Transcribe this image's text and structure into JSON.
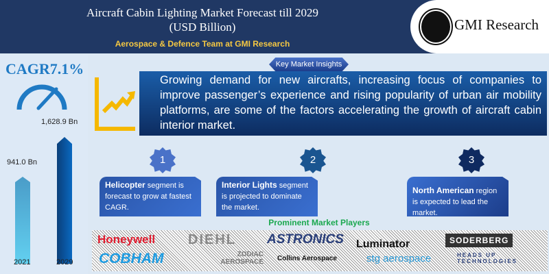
{
  "header": {
    "title_line1": "Aircraft Cabin Lighting Market Forecast till 2029",
    "title_line2": "(USD Billion)",
    "subtitle": "Aerospace & Defence Team at GMI Research",
    "brand": "GMI Research"
  },
  "left": {
    "cagr": "CAGR7.1%",
    "bars": [
      {
        "year": "2021",
        "value": 941.0,
        "label": "941.0 Bn"
      },
      {
        "year": "2029",
        "value": 1628.9,
        "label": "1,628.9 Bn"
      }
    ]
  },
  "insights": {
    "tab_label": "Key Market Insights",
    "text": "Growing demand for new aircrafts, increasing focus of companies to improve passenger’s experience and rising popularity of urban air mobility platforms, are some of the factors accelerating the growth of aircraft cabin interior market."
  },
  "cards": [
    {
      "num": "1",
      "bold": "Helicopter",
      "text": " segment is forecast to grow at fastest CAGR."
    },
    {
      "num": "2",
      "bold": "Interior Lights",
      "text": " segment is projected to dominate the market."
    },
    {
      "num": "3",
      "bold": "North American",
      "text": " region is expected to lead the market."
    }
  ],
  "players": {
    "title": "Prominent Market Players",
    "logos": [
      "Honeywell",
      "DIEHL",
      "ASTRONICS",
      "Luminator",
      "SODERBERG",
      "COBHAM",
      "ZODIAC AEROSPACE",
      "Collins Aerospace",
      "stg aerospace",
      "HEADS UP TECHNOLOGIES"
    ]
  },
  "colors": {
    "header": "#203864",
    "accent_yellow": "#f5c842",
    "cagr_blue": "#1f7ac4",
    "players_green": "#1aa84f"
  }
}
